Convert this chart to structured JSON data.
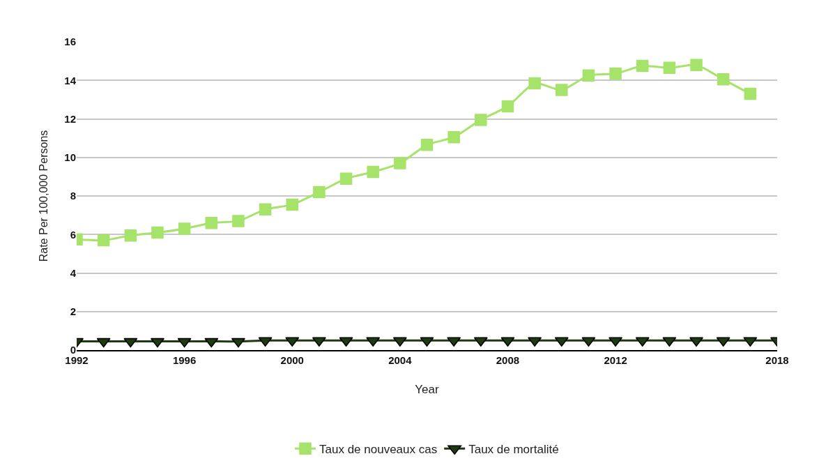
{
  "chart_data": {
    "type": "line",
    "xlabel": "Year",
    "ylabel": "Rate Per 100,000 Persons",
    "xlim": [
      1992,
      2018
    ],
    "xticks": [
      1992,
      1996,
      2000,
      2004,
      2008,
      2012,
      2018
    ],
    "ylim": [
      0,
      16
    ],
    "yticks": [
      0,
      2,
      4,
      6,
      8,
      10,
      12,
      14,
      16
    ],
    "grid": "y",
    "legend": "bottom",
    "line_style": "solid",
    "series": [
      {
        "name": "Taux de nouveaux cas",
        "color": "#a6e36a",
        "marker": "square",
        "x": [
          1992,
          1993,
          1994,
          1995,
          1996,
          1997,
          1998,
          1999,
          2000,
          2001,
          2002,
          2003,
          2004,
          2005,
          2006,
          2007,
          2008,
          2009,
          2010,
          2011,
          2012,
          2013,
          2014,
          2015,
          2016,
          2017
        ],
        "values": [
          5.75,
          5.7,
          5.95,
          6.1,
          6.3,
          6.6,
          6.7,
          7.3,
          7.55,
          8.2,
          8.9,
          9.25,
          9.7,
          10.65,
          11.05,
          11.95,
          12.65,
          13.85,
          13.5,
          14.25,
          14.35,
          14.75,
          14.65,
          14.8,
          14.05,
          13.3
        ]
      },
      {
        "name": "Taux de mortalité",
        "color": "#1e3a10",
        "marker": "triangle-down",
        "x": [
          1992,
          1993,
          1994,
          1995,
          1996,
          1997,
          1998,
          1999,
          2000,
          2001,
          2002,
          2003,
          2004,
          2005,
          2006,
          2007,
          2008,
          2009,
          2010,
          2011,
          2012,
          2013,
          2014,
          2015,
          2016,
          2017,
          2018
        ],
        "values": [
          0.45,
          0.45,
          0.45,
          0.45,
          0.45,
          0.45,
          0.45,
          0.5,
          0.5,
          0.5,
          0.5,
          0.5,
          0.5,
          0.5,
          0.5,
          0.5,
          0.5,
          0.5,
          0.5,
          0.5,
          0.5,
          0.5,
          0.5,
          0.5,
          0.5,
          0.5,
          0.5
        ]
      }
    ]
  }
}
